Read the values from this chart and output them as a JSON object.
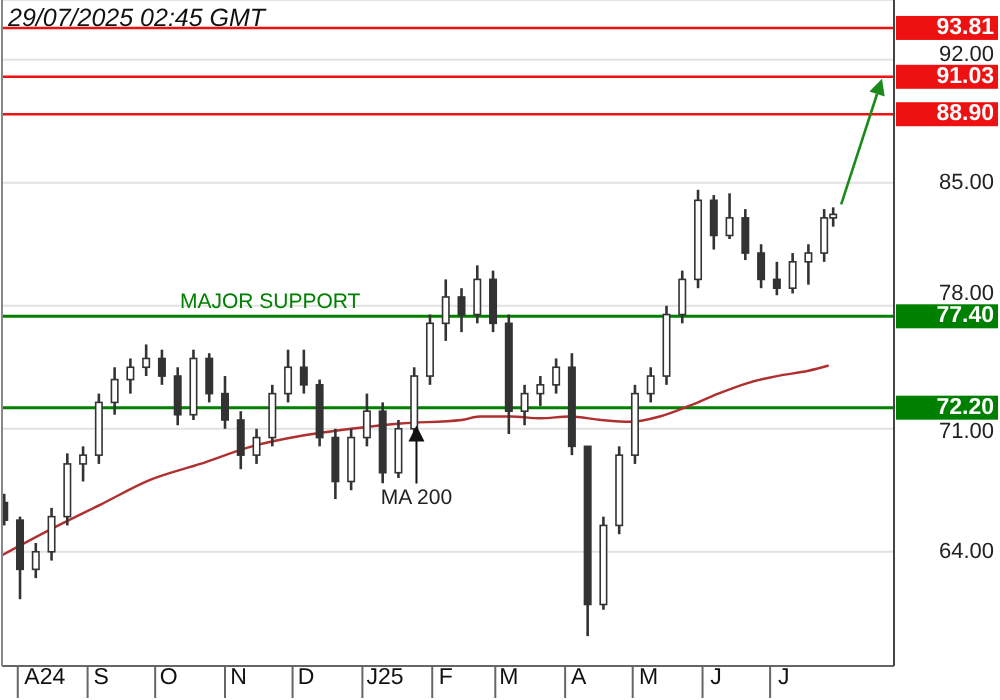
{
  "chart_data": {
    "type": "candlestick",
    "title": "29/07/2025 02:45 GMT",
    "x": [
      "2024-07-26",
      "2024-08-02",
      "2024-08-09",
      "2024-08-16",
      "2024-08-23",
      "2024-08-30",
      "2024-09-06",
      "2024-09-13",
      "2024-09-20",
      "2024-09-27",
      "2024-10-04",
      "2024-10-11",
      "2024-10-18",
      "2024-10-25",
      "2024-11-01",
      "2024-11-08",
      "2024-11-15",
      "2024-11-22",
      "2024-11-29",
      "2024-12-06",
      "2024-12-13",
      "2024-12-20",
      "2024-12-27",
      "2025-01-03",
      "2025-01-10",
      "2025-01-17",
      "2025-01-24",
      "2025-01-31",
      "2025-02-07",
      "2025-02-14",
      "2025-02-21",
      "2025-02-28",
      "2025-03-07",
      "2025-03-14",
      "2025-03-21",
      "2025-03-28",
      "2025-04-04",
      "2025-04-11",
      "2025-04-18",
      "2025-04-25",
      "2025-05-02",
      "2025-05-09",
      "2025-05-16",
      "2025-05-23",
      "2025-05-30",
      "2025-06-06",
      "2025-06-13",
      "2025-06-20",
      "2025-06-27",
      "2025-07-04",
      "2025-07-11",
      "2025-07-18",
      "2025-07-25",
      "2025-07-29"
    ],
    "ohlc": [
      [
        66.8,
        67.3,
        65.5,
        65.8
      ],
      [
        65.8,
        66,
        61.3,
        63
      ],
      [
        63,
        64.5,
        62.5,
        64
      ],
      [
        64,
        66.5,
        63.5,
        66
      ],
      [
        66,
        69.6,
        65.5,
        69
      ],
      [
        69,
        70,
        68,
        69.5
      ],
      [
        69.5,
        73,
        69,
        72.5
      ],
      [
        72.5,
        74.5,
        71.8,
        73.8
      ],
      [
        73.8,
        75,
        73,
        74.5
      ],
      [
        74.5,
        75.8,
        74,
        75
      ],
      [
        75,
        75.5,
        73.5,
        74
      ],
      [
        74,
        74.5,
        71.2,
        71.8
      ],
      [
        71.8,
        75.5,
        71.5,
        75
      ],
      [
        75,
        75.3,
        72.5,
        73
      ],
      [
        73,
        74,
        71,
        71.5
      ],
      [
        71.5,
        72,
        68.7,
        69.5
      ],
      [
        69.5,
        71,
        69,
        70.5
      ],
      [
        70.5,
        73.5,
        70,
        73
      ],
      [
        73,
        75.5,
        72.5,
        74.5
      ],
      [
        74.5,
        75.5,
        73,
        73.5
      ],
      [
        73.5,
        73.8,
        70,
        70.5
      ],
      [
        70.5,
        71,
        67,
        68
      ],
      [
        68,
        71,
        67.5,
        70.5
      ],
      [
        70.5,
        73,
        70,
        72
      ],
      [
        72,
        72.5,
        67.9,
        68.5
      ],
      [
        68.5,
        71.5,
        68.2,
        71
      ],
      [
        71,
        74.5,
        70.5,
        74
      ],
      [
        74,
        77.5,
        73.5,
        77
      ],
      [
        77,
        79.5,
        76,
        78.5
      ],
      [
        78.5,
        79,
        76.5,
        77.5
      ],
      [
        77.5,
        80.3,
        77,
        79.5
      ],
      [
        79.5,
        80,
        76.5,
        77
      ],
      [
        77,
        77.5,
        70.7,
        72
      ],
      [
        72,
        73.5,
        71.2,
        73
      ],
      [
        73,
        74,
        72.3,
        73.5
      ],
      [
        73.5,
        75,
        73,
        74.5
      ],
      [
        74.5,
        75.3,
        69.5,
        70
      ],
      [
        70,
        70,
        59.2,
        61
      ],
      [
        61,
        66,
        60.7,
        65.5
      ],
      [
        65.5,
        70,
        65,
        69.5
      ],
      [
        69.5,
        73.5,
        69,
        73
      ],
      [
        73,
        74.5,
        72.5,
        74
      ],
      [
        74,
        78,
        73.5,
        77.5
      ],
      [
        77.5,
        80,
        77,
        79.5
      ],
      [
        79.5,
        84.6,
        79,
        84
      ],
      [
        84,
        84.3,
        81.2,
        82
      ],
      [
        82,
        84.4,
        81.8,
        83
      ],
      [
        83,
        83.5,
        80.6,
        81
      ],
      [
        81,
        81.5,
        79,
        79.5
      ],
      [
        79.5,
        80.5,
        78.6,
        79
      ],
      [
        79,
        81,
        78.7,
        80.5
      ],
      [
        80.5,
        81.5,
        79.2,
        81
      ],
      [
        81,
        83.5,
        80.5,
        83
      ],
      [
        83,
        83.6,
        82.5,
        83.2
      ]
    ],
    "color": "#333333",
    "series": [
      {
        "type": "line",
        "color": "#b03030",
        "x": [
          "2024-07-25",
          "2024-08-16",
          "2024-09-07",
          "2024-09-29",
          "2024-10-21",
          "2024-11-13",
          "2024-12-05",
          "2024-12-27",
          "2025-01-18",
          "2025-02-14",
          "2025-02-22",
          "2025-03-08",
          "2025-03-21",
          "2025-04-03",
          "2025-04-17",
          "2025-04-30",
          "2025-05-13",
          "2025-05-26",
          "2025-06-08",
          "2025-06-21",
          "2025-07-04",
          "2025-07-18",
          "2025-07-27"
        ],
        "values": [
          63.8,
          65.3,
          66.7,
          68.1,
          69,
          70,
          70.6,
          71,
          71.3,
          71.5,
          71.7,
          71.7,
          71.6,
          71.7,
          71.5,
          71.4,
          71.7,
          72.3,
          73,
          73.6,
          74,
          74.3,
          74.6
        ]
      }
    ],
    "xlim": [
      "2024-07-25",
      "2025-08-25"
    ],
    "xticks": [
      {
        "value": "2024-08-01",
        "label": null
      },
      {
        "value": "2024-08-13",
        "label": "A24"
      },
      {
        "value": "2024-09-01",
        "label": null
      },
      {
        "value": "2024-09-07",
        "label": "S"
      },
      {
        "value": "2024-10-01",
        "label": null
      },
      {
        "value": "2024-10-07",
        "label": "O"
      },
      {
        "value": "2024-11-01",
        "label": null
      },
      {
        "value": "2024-11-07",
        "label": "N"
      },
      {
        "value": "2024-12-01",
        "label": null
      },
      {
        "value": "2024-12-07",
        "label": "D"
      },
      {
        "value": "2025-01-01",
        "label": null
      },
      {
        "value": "2025-01-11",
        "label": "J25"
      },
      {
        "value": "2025-02-01",
        "label": null
      },
      {
        "value": "2025-02-07",
        "label": "F"
      },
      {
        "value": "2025-03-01",
        "label": null
      },
      {
        "value": "2025-03-07",
        "label": "M"
      },
      {
        "value": "2025-04-01",
        "label": null
      },
      {
        "value": "2025-04-07",
        "label": "A"
      },
      {
        "value": "2025-05-01",
        "label": null
      },
      {
        "value": "2025-05-08",
        "label": "M"
      },
      {
        "value": "2025-06-01",
        "label": null
      },
      {
        "value": "2025-06-07",
        "label": "J"
      },
      {
        "value": "2025-07-01",
        "label": null
      },
      {
        "value": "2025-07-07",
        "label": "J"
      }
    ],
    "ylim": [
      57.5,
      95.4
    ],
    "yticks": [
      {
        "value": 64,
        "label": "64.00"
      },
      {
        "value": 71,
        "label": "71.00"
      },
      {
        "value": 78,
        "label": "78.00"
      },
      {
        "value": 85,
        "label": "85.00"
      },
      {
        "value": 92,
        "label": "92.00"
      }
    ],
    "grid": "y",
    "ref_lines": [
      {
        "axis": "y",
        "value": 93.81,
        "label": "93.81",
        "color": "#ee1111"
      },
      {
        "axis": "y",
        "value": 91.03,
        "label": "91.03",
        "color": "#ee1111"
      },
      {
        "axis": "y",
        "value": 88.9,
        "label": "88.90",
        "color": "#ee1111"
      },
      {
        "axis": "y",
        "value": 77.4,
        "label": "77.40",
        "color": "#008000"
      },
      {
        "axis": "y",
        "value": 72.2,
        "label": "72.20",
        "color": "#008000"
      }
    ],
    "annotations": [
      {
        "text": "MAJOR SUPPORT",
        "x": "2024-10-12",
        "y": 77.4
      },
      {
        "text": "MA 200",
        "x": "2025-01-25",
        "y": 71.3
      }
    ]
  }
}
